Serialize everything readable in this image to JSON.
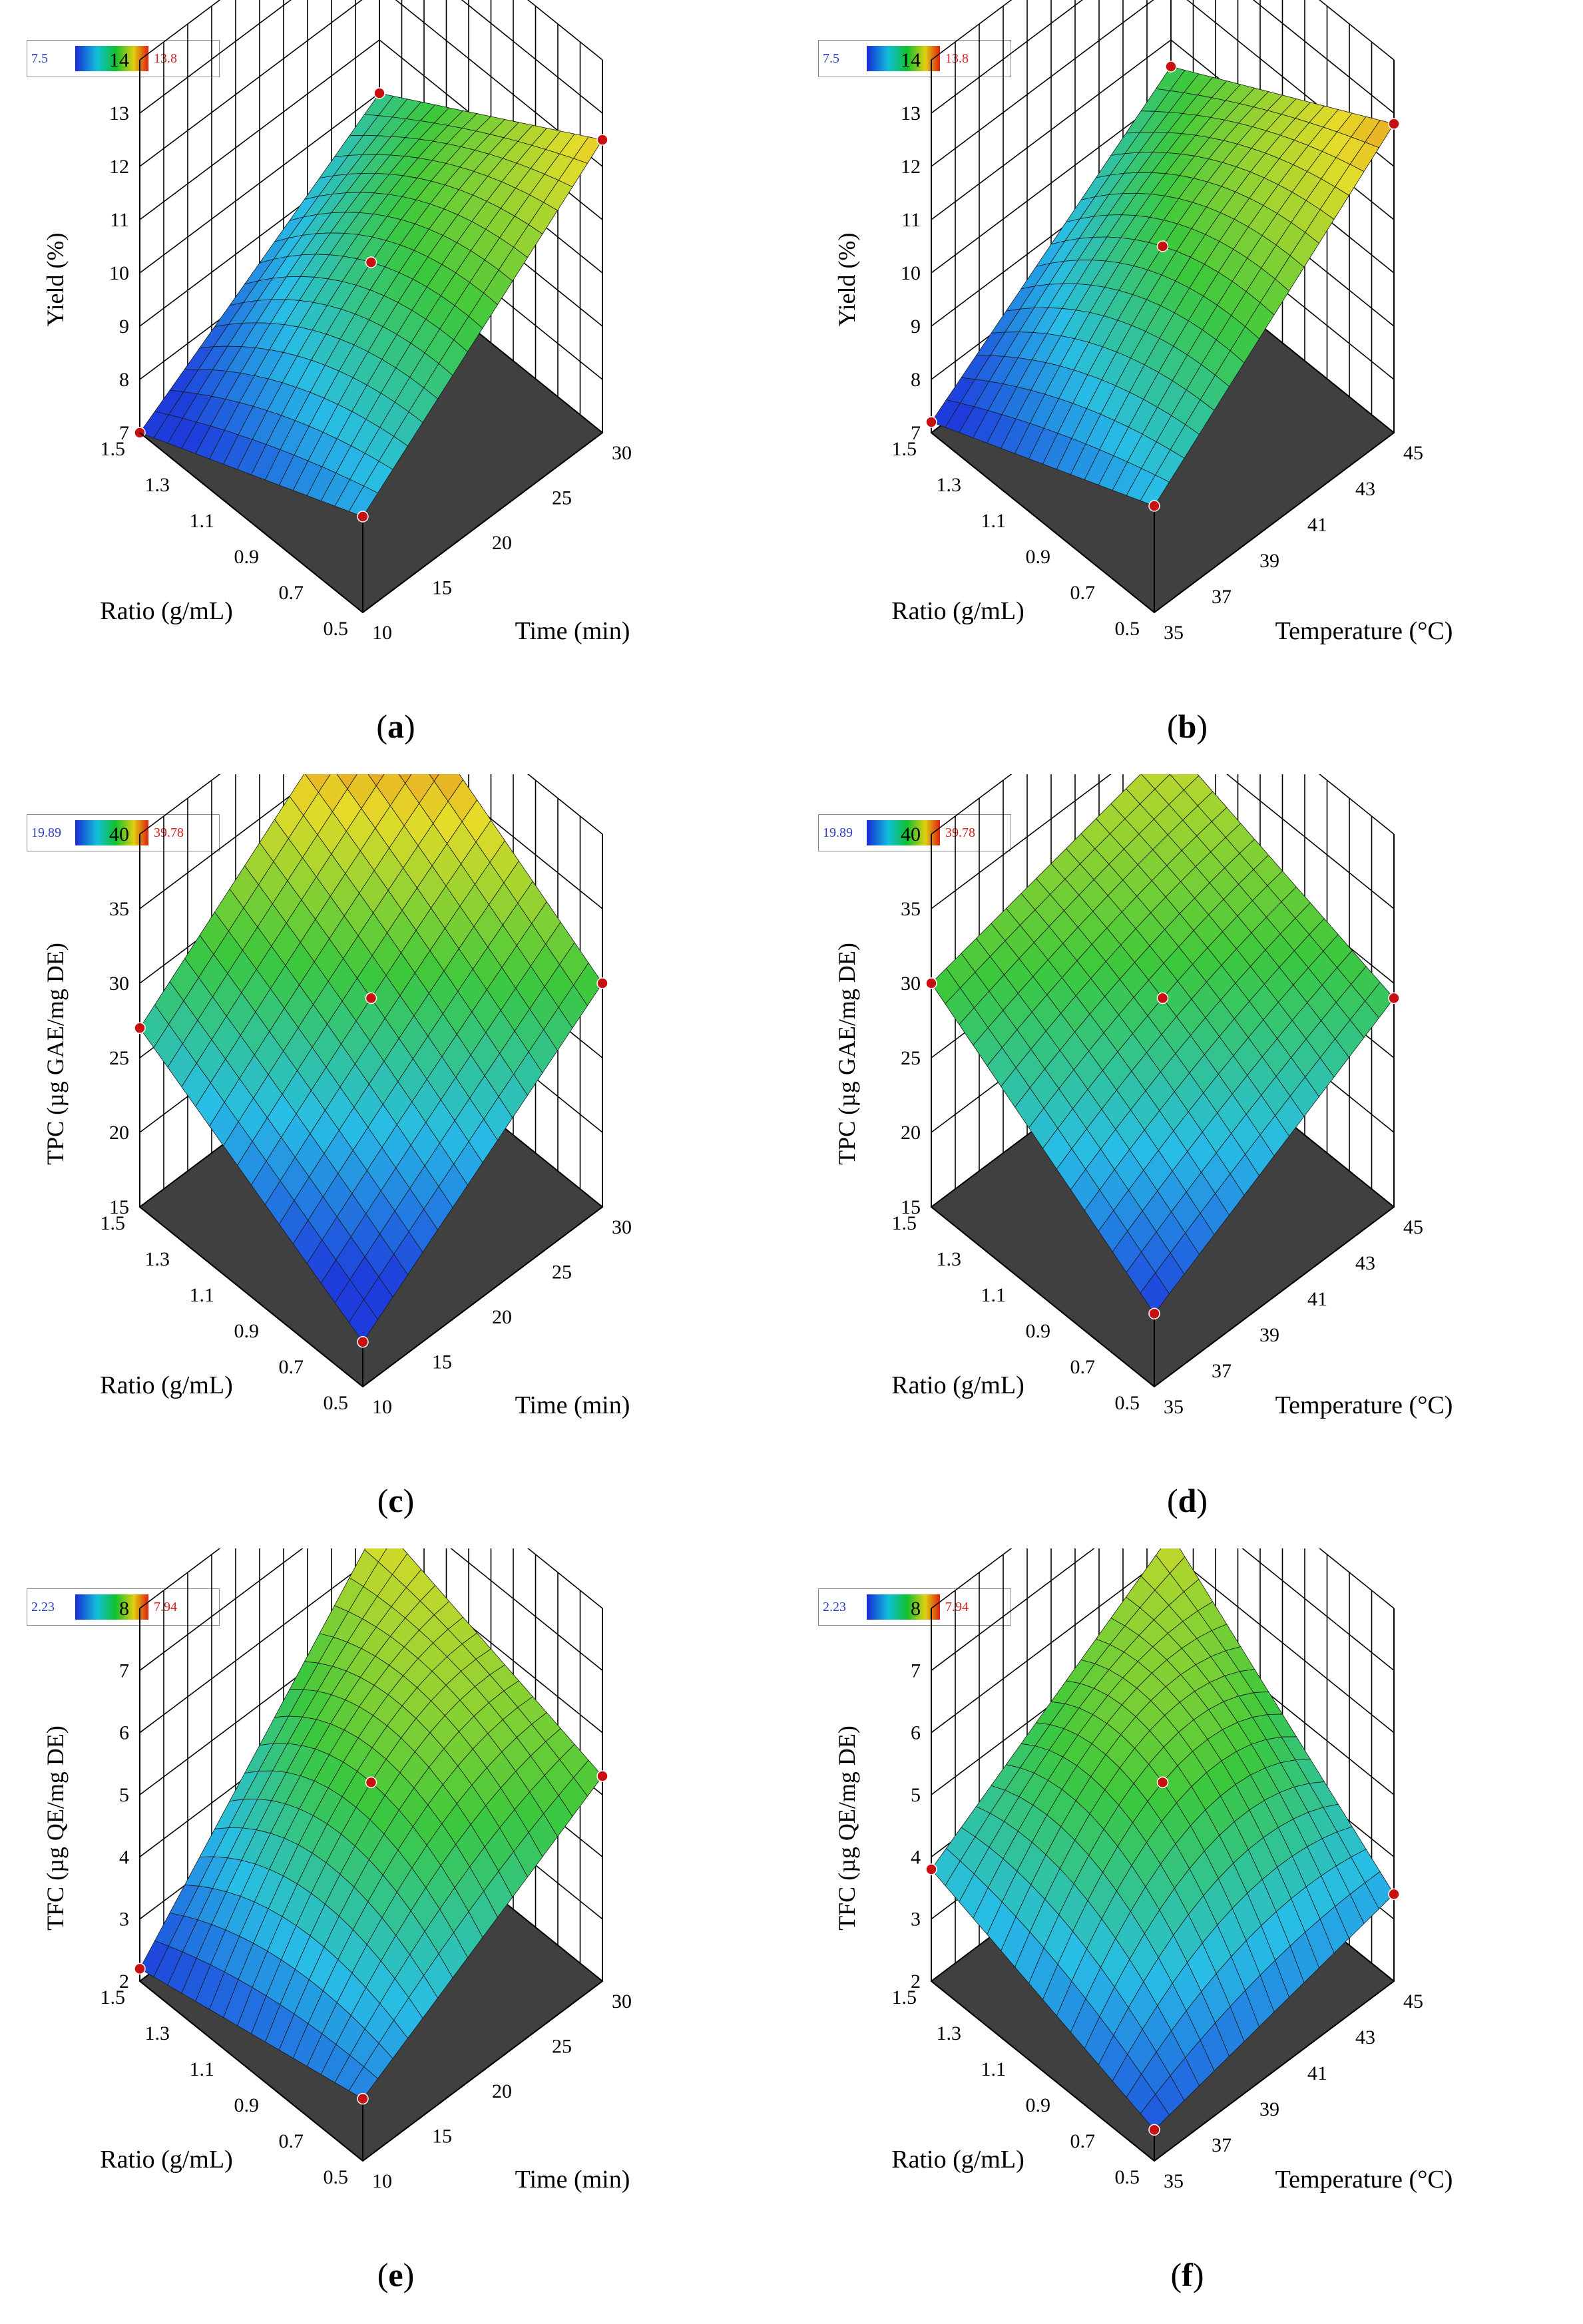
{
  "panels": [
    {
      "id": "a",
      "label": "a",
      "zlabel": "Yield (%)",
      "xlabel": "Ratio (g/mL)",
      "ylabel": "Time (min)",
      "legend": {
        "min": "7.5",
        "max": "13.8"
      },
      "zticks": [
        "7",
        "8",
        "9",
        "10",
        "11",
        "12",
        "13",
        "14"
      ],
      "xticks": [
        "0.5",
        "0.7",
        "0.9",
        "1.1",
        "1.3",
        "1.5"
      ],
      "yticks": [
        "10",
        "15",
        "20",
        "25",
        "30"
      ]
    },
    {
      "id": "b",
      "label": "b",
      "zlabel": "Yield (%)",
      "xlabel": "Ratio (g/mL)",
      "ylabel": "Temperature (°C)",
      "legend": {
        "min": "7.5",
        "max": "13.8"
      },
      "zticks": [
        "7",
        "8",
        "9",
        "10",
        "11",
        "12",
        "13",
        "14"
      ],
      "xticks": [
        "0.5",
        "0.7",
        "0.9",
        "1.1",
        "1.3",
        "1.5"
      ],
      "yticks": [
        "35",
        "37",
        "39",
        "41",
        "43",
        "45"
      ]
    },
    {
      "id": "c",
      "label": "c",
      "zlabel": "TPC (µg GAE/mg DE)",
      "xlabel": "Ratio (g/mL)",
      "ylabel": "Time (min)",
      "legend": {
        "min": "19.89",
        "max": "39.78"
      },
      "zticks": [
        "15",
        "20",
        "25",
        "30",
        "35",
        "40"
      ],
      "xticks": [
        "0.5",
        "0.7",
        "0.9",
        "1.1",
        "1.3",
        "1.5"
      ],
      "yticks": [
        "10",
        "15",
        "20",
        "25",
        "30"
      ]
    },
    {
      "id": "d",
      "label": "d",
      "zlabel": "TPC (µg GAE/mg DE)",
      "xlabel": "Ratio (g/mL)",
      "ylabel": "Temperature (°C)",
      "legend": {
        "min": "19.89",
        "max": "39.78"
      },
      "zticks": [
        "15",
        "20",
        "25",
        "30",
        "35",
        "40"
      ],
      "xticks": [
        "0.5",
        "0.7",
        "0.9",
        "1.1",
        "1.3",
        "1.5"
      ],
      "yticks": [
        "35",
        "37",
        "39",
        "41",
        "43",
        "45"
      ]
    },
    {
      "id": "e",
      "label": "e",
      "zlabel": "TFC (µg QE/mg DE)",
      "xlabel": "Ratio (g/mL)",
      "ylabel": "Time (min)",
      "legend": {
        "min": "2.23",
        "max": "7.94"
      },
      "zticks": [
        "2",
        "3",
        "4",
        "5",
        "6",
        "7",
        "8"
      ],
      "xticks": [
        "0.5",
        "0.7",
        "0.9",
        "1.1",
        "1.3",
        "1.5"
      ],
      "yticks": [
        "10",
        "15",
        "20",
        "25",
        "30"
      ]
    },
    {
      "id": "f",
      "label": "f",
      "zlabel": "TFC (µg QE/mg DE)",
      "xlabel": "Ratio (g/mL)",
      "ylabel": "Temperature (°C)",
      "legend": {
        "min": "2.23",
        "max": "7.94"
      },
      "zticks": [
        "2",
        "3",
        "4",
        "5",
        "6",
        "7",
        "8"
      ],
      "xticks": [
        "0.5",
        "0.7",
        "0.9",
        "1.1",
        "1.3",
        "1.5"
      ],
      "yticks": [
        "35",
        "37",
        "39",
        "41",
        "43",
        "45"
      ]
    }
  ],
  "chart_data": [
    {
      "type": "surface",
      "panel": "a",
      "x_var": "Ratio (g/mL)",
      "y_var": "Time (min)",
      "z_var": "Yield (%)",
      "xlim": [
        0.5,
        1.5
      ],
      "ylim": [
        10,
        30
      ],
      "zlim": [
        7,
        14
      ],
      "color_range": [
        7.5,
        13.8
      ],
      "corners": {
        "x0.5_y10": 8.8,
        "x1.5_y10": 7.0,
        "x0.5_y30": 12.5,
        "x1.5_y30": 10.0
      },
      "center_point": {
        "x": 1.0,
        "y": 20,
        "z": 10.2
      }
    },
    {
      "type": "surface",
      "panel": "b",
      "x_var": "Ratio (g/mL)",
      "y_var": "Temperature (°C)",
      "z_var": "Yield (%)",
      "xlim": [
        0.5,
        1.5
      ],
      "ylim": [
        35,
        45
      ],
      "zlim": [
        7,
        14
      ],
      "color_range": [
        7.5,
        13.8
      ],
      "corners": {
        "x0.5_y35": 9.0,
        "x1.5_y35": 7.2,
        "x0.5_y45": 12.8,
        "x1.5_y45": 10.5
      },
      "center_point": {
        "x": 1.0,
        "y": 40,
        "z": 10.5
      }
    },
    {
      "type": "surface",
      "panel": "c",
      "x_var": "Ratio (g/mL)",
      "y_var": "Time (min)",
      "z_var": "TPC (µg GAE/mg DE)",
      "xlim": [
        0.5,
        1.5
      ],
      "ylim": [
        10,
        30
      ],
      "zlim": [
        15,
        40
      ],
      "color_range": [
        19.89,
        39.78
      ],
      "corners": {
        "x0.5_y10": 18.0,
        "x1.5_y10": 27.0,
        "x0.5_y30": 30.0,
        "x1.5_y30": 39.8
      },
      "center_point": {
        "x": 1.0,
        "y": 20,
        "z": 29.0
      }
    },
    {
      "type": "surface",
      "panel": "d",
      "x_var": "Ratio (g/mL)",
      "y_var": "Temperature (°C)",
      "z_var": "TPC (µg GAE/mg DE)",
      "xlim": [
        0.5,
        1.5
      ],
      "ylim": [
        35,
        45
      ],
      "zlim": [
        15,
        40
      ],
      "color_range": [
        19.89,
        39.78
      ],
      "corners": {
        "x0.5_y35": 19.9,
        "x1.5_y35": 30.0,
        "x0.5_y45": 29.0,
        "x1.5_y45": 34.0
      },
      "center_point": {
        "x": 1.0,
        "y": 40,
        "z": 29.0
      }
    },
    {
      "type": "surface",
      "panel": "e",
      "x_var": "Ratio (g/mL)",
      "y_var": "Time (min)",
      "z_var": "TFC (µg QE/mg DE)",
      "xlim": [
        0.5,
        1.5
      ],
      "ylim": [
        10,
        30
      ],
      "zlim": [
        2,
        8
      ],
      "color_range": [
        2.23,
        7.94
      ],
      "corners": {
        "x0.5_y10": 3.0,
        "x1.5_y10": 2.2,
        "x0.5_y30": 5.3,
        "x1.5_y30": 6.5
      },
      "center_point": {
        "x": 1.0,
        "y": 20,
        "z": 5.2
      }
    },
    {
      "type": "surface",
      "panel": "f",
      "x_var": "Ratio (g/mL)",
      "y_var": "Temperature (°C)",
      "z_var": "TFC (µg QE/mg DE)",
      "xlim": [
        0.5,
        1.5
      ],
      "ylim": [
        35,
        45
      ],
      "zlim": [
        2,
        8
      ],
      "color_range": [
        2.23,
        7.94
      ],
      "corners": {
        "x0.5_y35": 2.5,
        "x1.5_y35": 3.8,
        "x0.5_y45": 3.4,
        "x1.5_y45": 6.3
      },
      "center_point": {
        "x": 1.0,
        "y": 40,
        "z": 5.2
      }
    }
  ]
}
